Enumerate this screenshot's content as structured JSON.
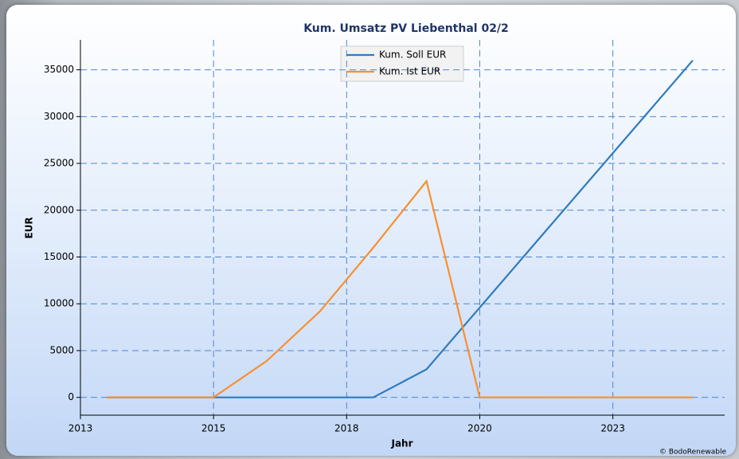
{
  "chart_data": {
    "type": "line",
    "title": "Kum. Umsatz PV Liebenthal 02/2",
    "x_label": "Jahr",
    "y_label": "EUR",
    "credit": "© BodoRenewable",
    "x": [
      2013.5,
      2014.5,
      2015.5,
      2016.5,
      2017.5,
      2018.5,
      2019.5,
      2020.5,
      2021.5,
      2022.5,
      2023.5,
      2024.5
    ],
    "series": [
      {
        "name": "Kum. Soll EUR",
        "color": "#2f7bbf",
        "values": [
          0,
          0,
          0,
          0,
          0,
          0,
          3000,
          9600,
          16200,
          22800,
          29400,
          36000
        ]
      },
      {
        "name": "Kum. Ist EUR",
        "color": "#f7902f",
        "values": [
          0,
          0,
          0,
          3900,
          9200,
          16000,
          23100,
          0,
          0,
          0,
          0,
          0
        ]
      }
    ],
    "xlim": [
      2013,
      2025.1
    ],
    "xticks": [
      {
        "value": 2013,
        "label": "2013"
      },
      {
        "value": 2015.5,
        "label": "2015"
      },
      {
        "value": 2018,
        "label": "2018"
      },
      {
        "value": 2020.5,
        "label": "2020"
      },
      {
        "value": 2023,
        "label": "2023"
      }
    ],
    "ylim": [
      -1900,
      38200
    ],
    "yticks": [
      0,
      5000,
      10000,
      15000,
      20000,
      25000,
      30000,
      35000
    ],
    "grid": true
  }
}
